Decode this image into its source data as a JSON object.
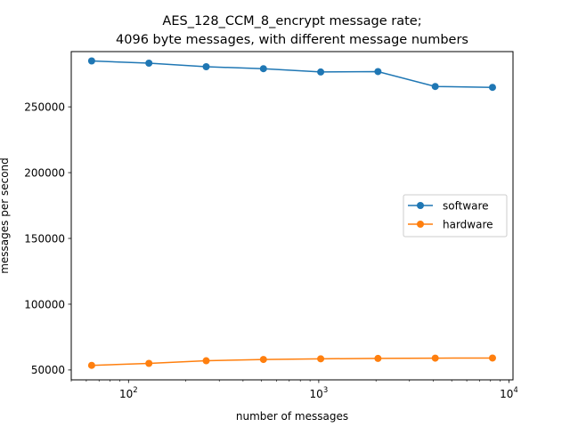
{
  "chart_data": {
    "type": "line",
    "title_lines": [
      "AES_128_CCM_8_encrypt message rate;",
      "4096 byte messages, with different message numbers"
    ],
    "xlabel": "number of messages",
    "ylabel": "messages per second",
    "x_scale": "log",
    "xlim": [
      50,
      10500
    ],
    "ylim": [
      42500,
      292000
    ],
    "grid": false,
    "legend_position": "center-right",
    "x_ticks": [
      {
        "value": 100,
        "base": "10",
        "exp": "2"
      },
      {
        "value": 1000,
        "base": "10",
        "exp": "3"
      },
      {
        "value": 10000,
        "base": "10",
        "exp": "4"
      }
    ],
    "y_ticks": [
      50000,
      100000,
      150000,
      200000,
      250000
    ],
    "x": [
      64,
      128,
      256,
      512,
      1024,
      2048,
      4096,
      8192
    ],
    "series": [
      {
        "name": "software",
        "color": "#1f77b4",
        "values": [
          284900,
          283200,
          280500,
          279000,
          276500,
          276800,
          265500,
          264800
        ]
      },
      {
        "name": "hardware",
        "color": "#ff7f0e",
        "values": [
          53500,
          55000,
          57000,
          58000,
          58500,
          58800,
          59000,
          59100
        ]
      }
    ]
  }
}
